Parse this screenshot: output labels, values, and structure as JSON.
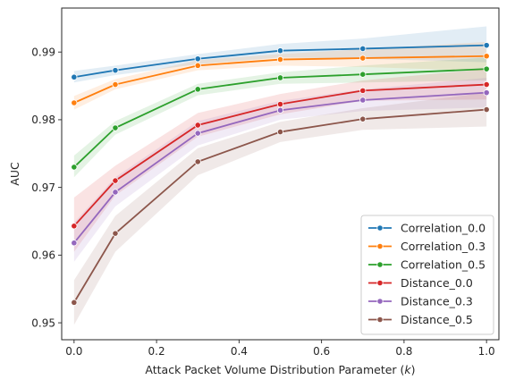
{
  "chart_data": {
    "type": "line",
    "xlabel": "Attack Packet Volume Distribution Parameter (k)",
    "ylabel": "AUC",
    "xlim": [
      -0.03,
      1.03
    ],
    "ylim": [
      0.9475,
      0.9965
    ],
    "xticks": [
      0.0,
      0.2,
      0.4,
      0.6,
      0.8,
      1.0
    ],
    "xtick_labels": [
      "0.0",
      "0.2",
      "0.4",
      "0.6",
      "0.8",
      "1.0"
    ],
    "yticks": [
      0.95,
      0.96,
      0.97,
      0.98,
      0.99
    ],
    "ytick_labels": [
      "0.95",
      "0.96",
      "0.97",
      "0.98",
      "0.99"
    ],
    "grid": false,
    "legend_position": "lower-right",
    "x": [
      0.0,
      0.1,
      0.3,
      0.5,
      0.7,
      1.0
    ],
    "series": [
      {
        "name": "Correlation_0.0",
        "color": "#1f77b4",
        "values": [
          0.9863,
          0.9873,
          0.989,
          0.9902,
          0.9905,
          0.991
        ],
        "lower": [
          0.9855,
          0.9866,
          0.9882,
          0.9892,
          0.989,
          0.9885
        ],
        "upper": [
          0.9872,
          0.988,
          0.9897,
          0.9912,
          0.992,
          0.9938
        ]
      },
      {
        "name": "Correlation_0.3",
        "color": "#ff7f0e",
        "values": [
          0.9825,
          0.9852,
          0.988,
          0.9889,
          0.9891,
          0.9894
        ],
        "lower": [
          0.9815,
          0.9845,
          0.9873,
          0.988,
          0.9878,
          0.9872
        ],
        "upper": [
          0.9835,
          0.986,
          0.9888,
          0.9897,
          0.9904,
          0.9915
        ]
      },
      {
        "name": "Correlation_0.5",
        "color": "#2ca02c",
        "values": [
          0.973,
          0.9788,
          0.9845,
          0.9862,
          0.9867,
          0.9875
        ],
        "lower": [
          0.9715,
          0.9778,
          0.9836,
          0.9853,
          0.9855,
          0.9858
        ],
        "upper": [
          0.9747,
          0.9798,
          0.9853,
          0.987,
          0.988,
          0.9892
        ]
      },
      {
        "name": "Distance_0.0",
        "color": "#d62728",
        "values": [
          0.9643,
          0.971,
          0.9792,
          0.9823,
          0.9843,
          0.9852
        ],
        "lower": [
          0.9605,
          0.9688,
          0.9775,
          0.9808,
          0.9828,
          0.983
        ],
        "upper": [
          0.9685,
          0.9732,
          0.981,
          0.9838,
          0.9858,
          0.9875
        ]
      },
      {
        "name": "Distance_0.3",
        "color": "#9467bd",
        "values": [
          0.9618,
          0.9693,
          0.978,
          0.9814,
          0.9829,
          0.984
        ],
        "lower": [
          0.959,
          0.9672,
          0.9762,
          0.98,
          0.9813,
          0.9818
        ],
        "upper": [
          0.9648,
          0.9715,
          0.9798,
          0.9828,
          0.9845,
          0.9862
        ]
      },
      {
        "name": "Distance_0.5",
        "color": "#8c564b",
        "values": [
          0.953,
          0.9632,
          0.9738,
          0.9782,
          0.9801,
          0.9815
        ],
        "lower": [
          0.9497,
          0.9605,
          0.9718,
          0.9767,
          0.9785,
          0.979
        ],
        "upper": [
          0.9563,
          0.9658,
          0.9758,
          0.9797,
          0.9817,
          0.984
        ]
      }
    ]
  }
}
